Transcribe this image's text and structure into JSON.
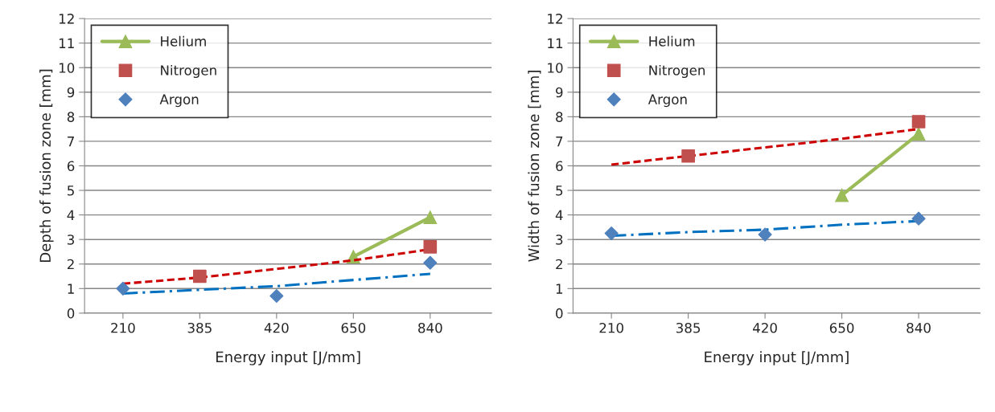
{
  "chart_data": [
    {
      "type": "line",
      "xlabel": "Energy input [J/mm]",
      "ylabel": "Depth of fusion zone [mm]",
      "categories": [
        "210",
        "385",
        "420",
        "650",
        "840"
      ],
      "ylim": [
        0,
        12
      ],
      "yticks": [
        0,
        1,
        2,
        3,
        4,
        5,
        6,
        7,
        8,
        9,
        10,
        11,
        12
      ],
      "grid": "y",
      "legend": "top left",
      "series": [
        {
          "name": "Helium",
          "color": "#9bbb59",
          "marker": "triangle",
          "line_style": "solid",
          "values": [
            null,
            null,
            null,
            2.3,
            3.9
          ]
        },
        {
          "name": "Nitrogen",
          "type": "scatter",
          "color": "#c0504d",
          "marker": "square",
          "values": [
            null,
            1.5,
            null,
            null,
            2.7
          ]
        },
        {
          "name": "Argon",
          "type": "scatter",
          "color": "#4f81bd",
          "marker": "diamond",
          "values": [
            1.0,
            null,
            0.7,
            null,
            2.05
          ]
        },
        {
          "color": "#cc0000",
          "marker": "none",
          "line_style": "dashed",
          "values": [
            1.2,
            1.45,
            1.8,
            2.15,
            2.6
          ]
        },
        {
          "color": "#0070c0",
          "marker": "none",
          "line_style": "dashdot",
          "values": [
            0.8,
            0.95,
            1.1,
            1.35,
            1.6
          ]
        }
      ]
    },
    {
      "type": "line",
      "xlabel": "Energy input [J/mm]",
      "ylabel": "Width of fusion zone [mm]",
      "categories": [
        "210",
        "385",
        "420",
        "650",
        "840"
      ],
      "ylim": [
        0,
        12
      ],
      "yticks": [
        0,
        1,
        2,
        3,
        4,
        5,
        6,
        7,
        8,
        9,
        10,
        11,
        12
      ],
      "grid": "y",
      "legend": "top left",
      "series": [
        {
          "name": "Helium",
          "color": "#9bbb59",
          "marker": "triangle",
          "line_style": "solid",
          "values": [
            null,
            null,
            null,
            4.8,
            7.3
          ]
        },
        {
          "name": "Nitrogen",
          "type": "scatter",
          "color": "#c0504d",
          "marker": "square",
          "values": [
            null,
            6.4,
            null,
            null,
            7.8
          ]
        },
        {
          "name": "Argon",
          "type": "scatter",
          "color": "#4f81bd",
          "marker": "diamond",
          "values": [
            3.25,
            null,
            3.2,
            null,
            3.85
          ]
        },
        {
          "color": "#cc0000",
          "marker": "none",
          "line_style": "dashed",
          "values": [
            6.05,
            6.4,
            6.75,
            7.1,
            7.5
          ]
        },
        {
          "color": "#0070c0",
          "marker": "none",
          "line_style": "dashdot",
          "values": [
            3.15,
            3.3,
            3.4,
            3.6,
            3.75
          ]
        }
      ]
    }
  ]
}
